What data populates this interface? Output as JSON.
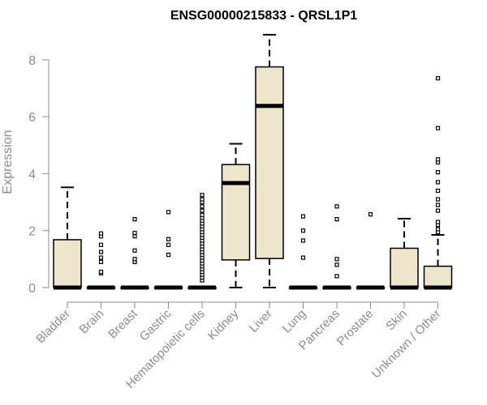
{
  "chart_data": {
    "type": "boxplot",
    "title": "ENSG00000215833 - QRSL1P1",
    "xlabel": "",
    "ylabel": "Expression",
    "ylim": [
      0,
      9
    ],
    "yticks": [
      0,
      2,
      4,
      6,
      8
    ],
    "colors": {
      "box_fill": "#ede6cd",
      "box_stroke": "#000000",
      "axis": "#8c8c8c"
    },
    "categories": [
      "Bladder",
      "Brain",
      "Breast",
      "Gastric",
      "Hematopoietic cells",
      "Kidney",
      "Liver",
      "Lung",
      "Pancreas",
      "Prostate",
      "Skin",
      "Unknown / Other"
    ],
    "boxes": [
      {
        "category": "Bladder",
        "min": 0,
        "q1": 0,
        "median": 0,
        "q3": 1.68,
        "max": 3.52,
        "outliers": []
      },
      {
        "category": "Brain",
        "min": 0,
        "q1": 0,
        "median": 0,
        "q3": 0,
        "max": 0,
        "outliers": [
          0.5,
          0.55,
          0.9,
          1.05,
          1.25,
          1.5,
          1.8,
          1.9
        ]
      },
      {
        "category": "Breast",
        "min": 0,
        "q1": 0,
        "median": 0,
        "q3": 0,
        "max": 0,
        "outliers": [
          0.9,
          1.0,
          1.3,
          1.8,
          1.92,
          2.4
        ]
      },
      {
        "category": "Gastric",
        "min": 0,
        "q1": 0,
        "median": 0,
        "q3": 0,
        "max": 0,
        "outliers": [
          1.15,
          1.5,
          1.7,
          2.65
        ]
      },
      {
        "category": "Hematopoietic cells",
        "min": 0,
        "q1": 0,
        "median": 0,
        "q3": 0,
        "max": 0,
        "outliers": [
          0.25,
          0.35,
          0.45,
          0.55,
          0.65,
          0.75,
          0.85,
          0.95,
          1.05,
          1.15,
          1.25,
          1.35,
          1.45,
          1.55,
          1.65,
          1.75,
          1.85,
          1.95,
          2.05,
          2.15,
          2.25,
          2.35,
          2.45,
          2.55,
          2.7,
          2.85,
          3.0,
          3.1,
          3.25
        ]
      },
      {
        "category": "Kidney",
        "min": 0,
        "q1": 0.97,
        "median": 3.67,
        "q3": 4.32,
        "max": 5.05,
        "outliers": []
      },
      {
        "category": "Liver",
        "min": 0,
        "q1": 1.02,
        "median": 6.38,
        "q3": 7.75,
        "max": 8.88,
        "outliers": []
      },
      {
        "category": "Lung",
        "min": 0,
        "q1": 0,
        "median": 0,
        "q3": 0,
        "max": 0,
        "outliers": [
          1.05,
          1.65,
          2.0,
          2.5
        ]
      },
      {
        "category": "Pancreas",
        "min": 0,
        "q1": 0,
        "median": 0,
        "q3": 0,
        "max": 0,
        "outliers": [
          0.4,
          0.8,
          1.0,
          2.4,
          2.85
        ]
      },
      {
        "category": "Prostate",
        "min": 0,
        "q1": 0,
        "median": 0,
        "q3": 0,
        "max": 0,
        "outliers": [
          2.57
        ]
      },
      {
        "category": "Skin",
        "min": 0,
        "q1": 0,
        "median": 0,
        "q3": 1.38,
        "max": 2.42,
        "outliers": []
      },
      {
        "category": "Unknown / Other",
        "min": 0,
        "q1": 0,
        "median": 0,
        "q3": 0.75,
        "max": 1.85,
        "outliers": [
          1.95,
          2.05,
          2.2,
          2.3,
          2.7,
          2.9,
          3.1,
          3.4,
          3.7,
          4.05,
          4.4,
          4.5,
          5.6,
          7.35
        ]
      }
    ]
  }
}
